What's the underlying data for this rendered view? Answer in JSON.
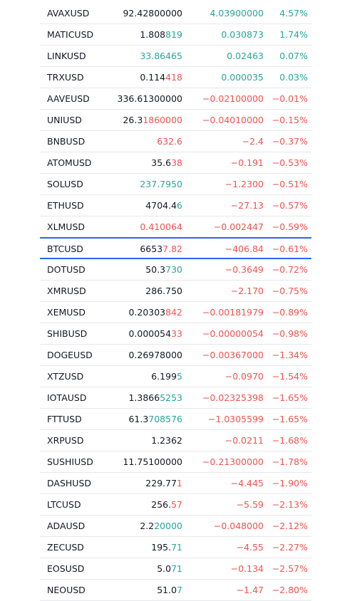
{
  "table": {
    "highlight_symbol": "BTCUSD",
    "rows": [
      {
        "symbol": "AVAXUSD",
        "price": [
          {
            "text": "92.42800000"
          }
        ],
        "change": "4.03900000",
        "percent": "4.57%",
        "tone": "up"
      },
      {
        "symbol": "MATICUSD",
        "price": [
          {
            "text": "1.808"
          },
          {
            "text": "819",
            "tone": "up"
          }
        ],
        "change": "0.030873",
        "percent": "1.74%",
        "tone": "up"
      },
      {
        "symbol": "LINKUSD",
        "price": [
          {
            "text": "33.86465",
            "tone": "up"
          }
        ],
        "change": "0.02463",
        "percent": "0.07%",
        "tone": "up"
      },
      {
        "symbol": "TRXUSD",
        "price": [
          {
            "text": "0.114"
          },
          {
            "text": "418",
            "tone": "down"
          }
        ],
        "change": "0.000035",
        "percent": "0.03%",
        "tone": "up"
      },
      {
        "symbol": "AAVEUSD",
        "price": [
          {
            "text": "336.61300000"
          }
        ],
        "change": "−0.02100000",
        "percent": "−0.01%",
        "tone": "down"
      },
      {
        "symbol": "UNIUSD",
        "price": [
          {
            "text": "26.3"
          },
          {
            "text": "1860000",
            "tone": "down"
          }
        ],
        "change": "−0.04010000",
        "percent": "−0.15%",
        "tone": "down"
      },
      {
        "symbol": "BNBUSD",
        "price": [
          {
            "text": "632.6",
            "tone": "down"
          }
        ],
        "change": "−2.4",
        "percent": "−0.37%",
        "tone": "down"
      },
      {
        "symbol": "ATOMUSD",
        "price": [
          {
            "text": "35.6"
          },
          {
            "text": "38",
            "tone": "down"
          }
        ],
        "change": "−0.191",
        "percent": "−0.53%",
        "tone": "down"
      },
      {
        "symbol": "SOLUSD",
        "price": [
          {
            "text": "237.7950",
            "tone": "up"
          }
        ],
        "change": "−1.2300",
        "percent": "−0.51%",
        "tone": "down"
      },
      {
        "symbol": "ETHUSD",
        "price": [
          {
            "text": "4704.4"
          },
          {
            "text": "6",
            "tone": "up"
          }
        ],
        "change": "−27.13",
        "percent": "−0.57%",
        "tone": "down"
      },
      {
        "symbol": "XLMUSD",
        "price": [
          {
            "text": "0.410064",
            "tone": "down"
          }
        ],
        "change": "−0.002447",
        "percent": "−0.59%",
        "tone": "down"
      },
      {
        "symbol": "BTCUSD",
        "price": [
          {
            "text": "6653"
          },
          {
            "text": "7.82",
            "tone": "down"
          }
        ],
        "change": "−406.84",
        "percent": "−0.61%",
        "tone": "down"
      },
      {
        "symbol": "DOTUSD",
        "price": [
          {
            "text": "50.3"
          },
          {
            "text": "730",
            "tone": "up"
          }
        ],
        "change": "−0.3649",
        "percent": "−0.72%",
        "tone": "down"
      },
      {
        "symbol": "XMRUSD",
        "price": [
          {
            "text": "286.750"
          }
        ],
        "change": "−2.170",
        "percent": "−0.75%",
        "tone": "down"
      },
      {
        "symbol": "XEMUSD",
        "price": [
          {
            "text": "0.20303"
          },
          {
            "text": "842",
            "tone": "down"
          }
        ],
        "change": "−0.00181979",
        "percent": "−0.89%",
        "tone": "down"
      },
      {
        "symbol": "SHIBUSD",
        "price": [
          {
            "text": "0.000054"
          },
          {
            "text": "33",
            "tone": "down"
          }
        ],
        "change": "−0.00000054",
        "percent": "−0.98%",
        "tone": "down"
      },
      {
        "symbol": "DOGEUSD",
        "price": [
          {
            "text": "0.26978000"
          }
        ],
        "change": "−0.00367000",
        "percent": "−1.34%",
        "tone": "down"
      },
      {
        "symbol": "XTZUSD",
        "price": [
          {
            "text": "6.199"
          },
          {
            "text": "5",
            "tone": "up"
          }
        ],
        "change": "−0.0970",
        "percent": "−1.54%",
        "tone": "down"
      },
      {
        "symbol": "IOTAUSD",
        "price": [
          {
            "text": "1.3866"
          },
          {
            "text": "5253",
            "tone": "up"
          }
        ],
        "change": "−0.02325398",
        "percent": "−1.65%",
        "tone": "down"
      },
      {
        "symbol": "FTTUSD",
        "price": [
          {
            "text": "61.3"
          },
          {
            "text": "708576",
            "tone": "up"
          }
        ],
        "change": "−1.0305599",
        "percent": "−1.65%",
        "tone": "down"
      },
      {
        "symbol": "XRPUSD",
        "price": [
          {
            "text": "1.2362"
          }
        ],
        "change": "−0.0211",
        "percent": "−1.68%",
        "tone": "down"
      },
      {
        "symbol": "SUSHIUSD",
        "price": [
          {
            "text": "11.75100000"
          }
        ],
        "change": "−0.21300000",
        "percent": "−1.78%",
        "tone": "down"
      },
      {
        "symbol": "DASHUSD",
        "price": [
          {
            "text": "229.77"
          },
          {
            "text": "1",
            "tone": "down"
          }
        ],
        "change": "−4.445",
        "percent": "−1.90%",
        "tone": "down"
      },
      {
        "symbol": "LTCUSD",
        "price": [
          {
            "text": "256."
          },
          {
            "text": "57",
            "tone": "down"
          }
        ],
        "change": "−5.59",
        "percent": "−2.13%",
        "tone": "down"
      },
      {
        "symbol": "ADAUSD",
        "price": [
          {
            "text": "2.2"
          },
          {
            "text": "20000",
            "tone": "up"
          }
        ],
        "change": "−0.048000",
        "percent": "−2.12%",
        "tone": "down"
      },
      {
        "symbol": "ZECUSD",
        "price": [
          {
            "text": "195."
          },
          {
            "text": "71",
            "tone": "up"
          }
        ],
        "change": "−4.55",
        "percent": "−2.27%",
        "tone": "down"
      },
      {
        "symbol": "EOSUSD",
        "price": [
          {
            "text": "5.0"
          },
          {
            "text": "71",
            "tone": "up"
          }
        ],
        "change": "−0.134",
        "percent": "−2.57%",
        "tone": "down"
      },
      {
        "symbol": "NEOUSD",
        "price": [
          {
            "text": "51.0"
          },
          {
            "text": "7",
            "tone": "up"
          }
        ],
        "change": "−1.47",
        "percent": "−2.80%",
        "tone": "down"
      }
    ]
  }
}
